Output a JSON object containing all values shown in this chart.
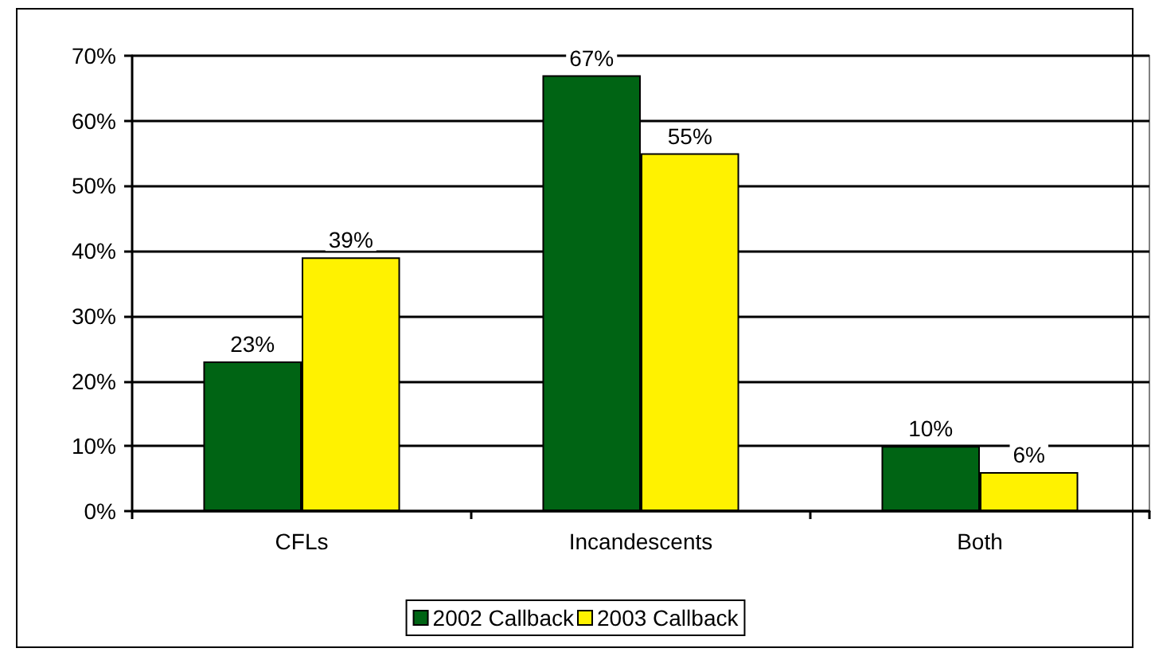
{
  "chart_data": {
    "type": "bar",
    "categories": [
      "CFLs",
      "Incandescents",
      "Both"
    ],
    "series": [
      {
        "name": "2002 Callback",
        "color": "#006414",
        "values": [
          23,
          67,
          10
        ],
        "value_labels": [
          "23%",
          "67%",
          "10%"
        ]
      },
      {
        "name": "2003 Callback",
        "color": "#fff200",
        "values": [
          39,
          55,
          6
        ],
        "value_labels": [
          "39%",
          "55%",
          "6%"
        ]
      }
    ],
    "ylim": [
      0,
      70
    ],
    "yticks": [
      {
        "value": 0,
        "label": "0%"
      },
      {
        "value": 10,
        "label": "10%"
      },
      {
        "value": 20,
        "label": "20%"
      },
      {
        "value": 30,
        "label": "30%"
      },
      {
        "value": 40,
        "label": "40%"
      },
      {
        "value": 50,
        "label": "50%"
      },
      {
        "value": 60,
        "label": "60%"
      },
      {
        "value": 70,
        "label": "70%"
      }
    ],
    "grid": "y",
    "legend": "bottom"
  }
}
